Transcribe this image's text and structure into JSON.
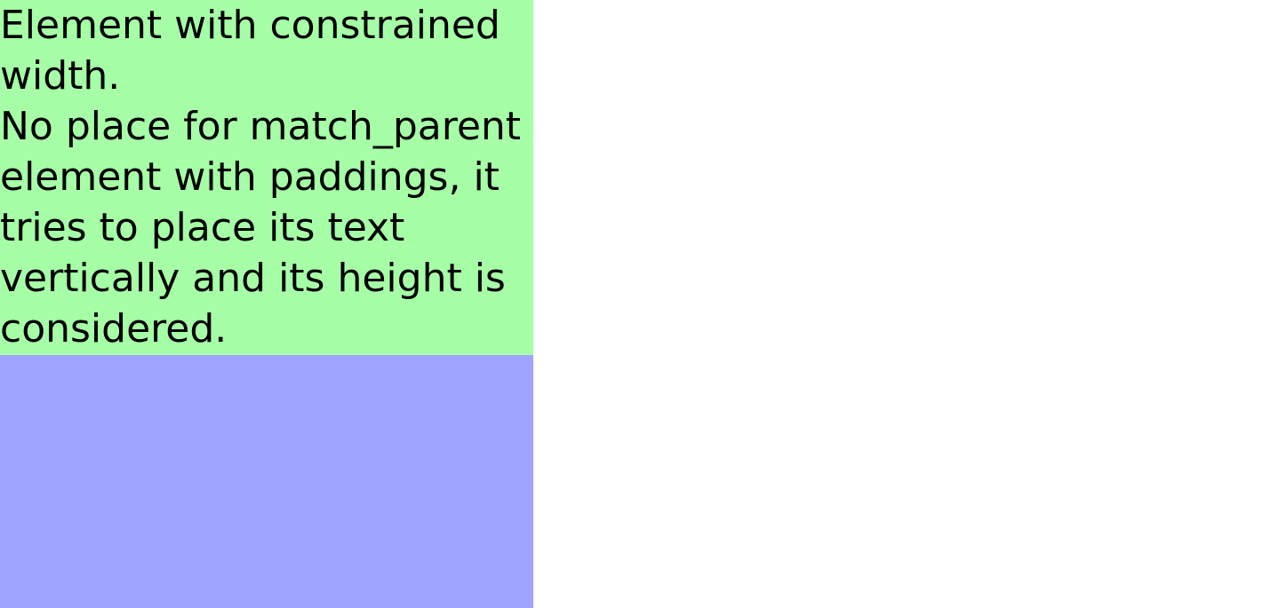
{
  "green_block": {
    "color": "#a6ffa6",
    "lines": [
      "Element with constrained",
      "width.",
      "No place for match_parent",
      "element with paddings, it",
      "tries to place its text",
      "vertically and its height is",
      "considered."
    ]
  },
  "blue_block": {
    "color": "#a0a3ff"
  }
}
